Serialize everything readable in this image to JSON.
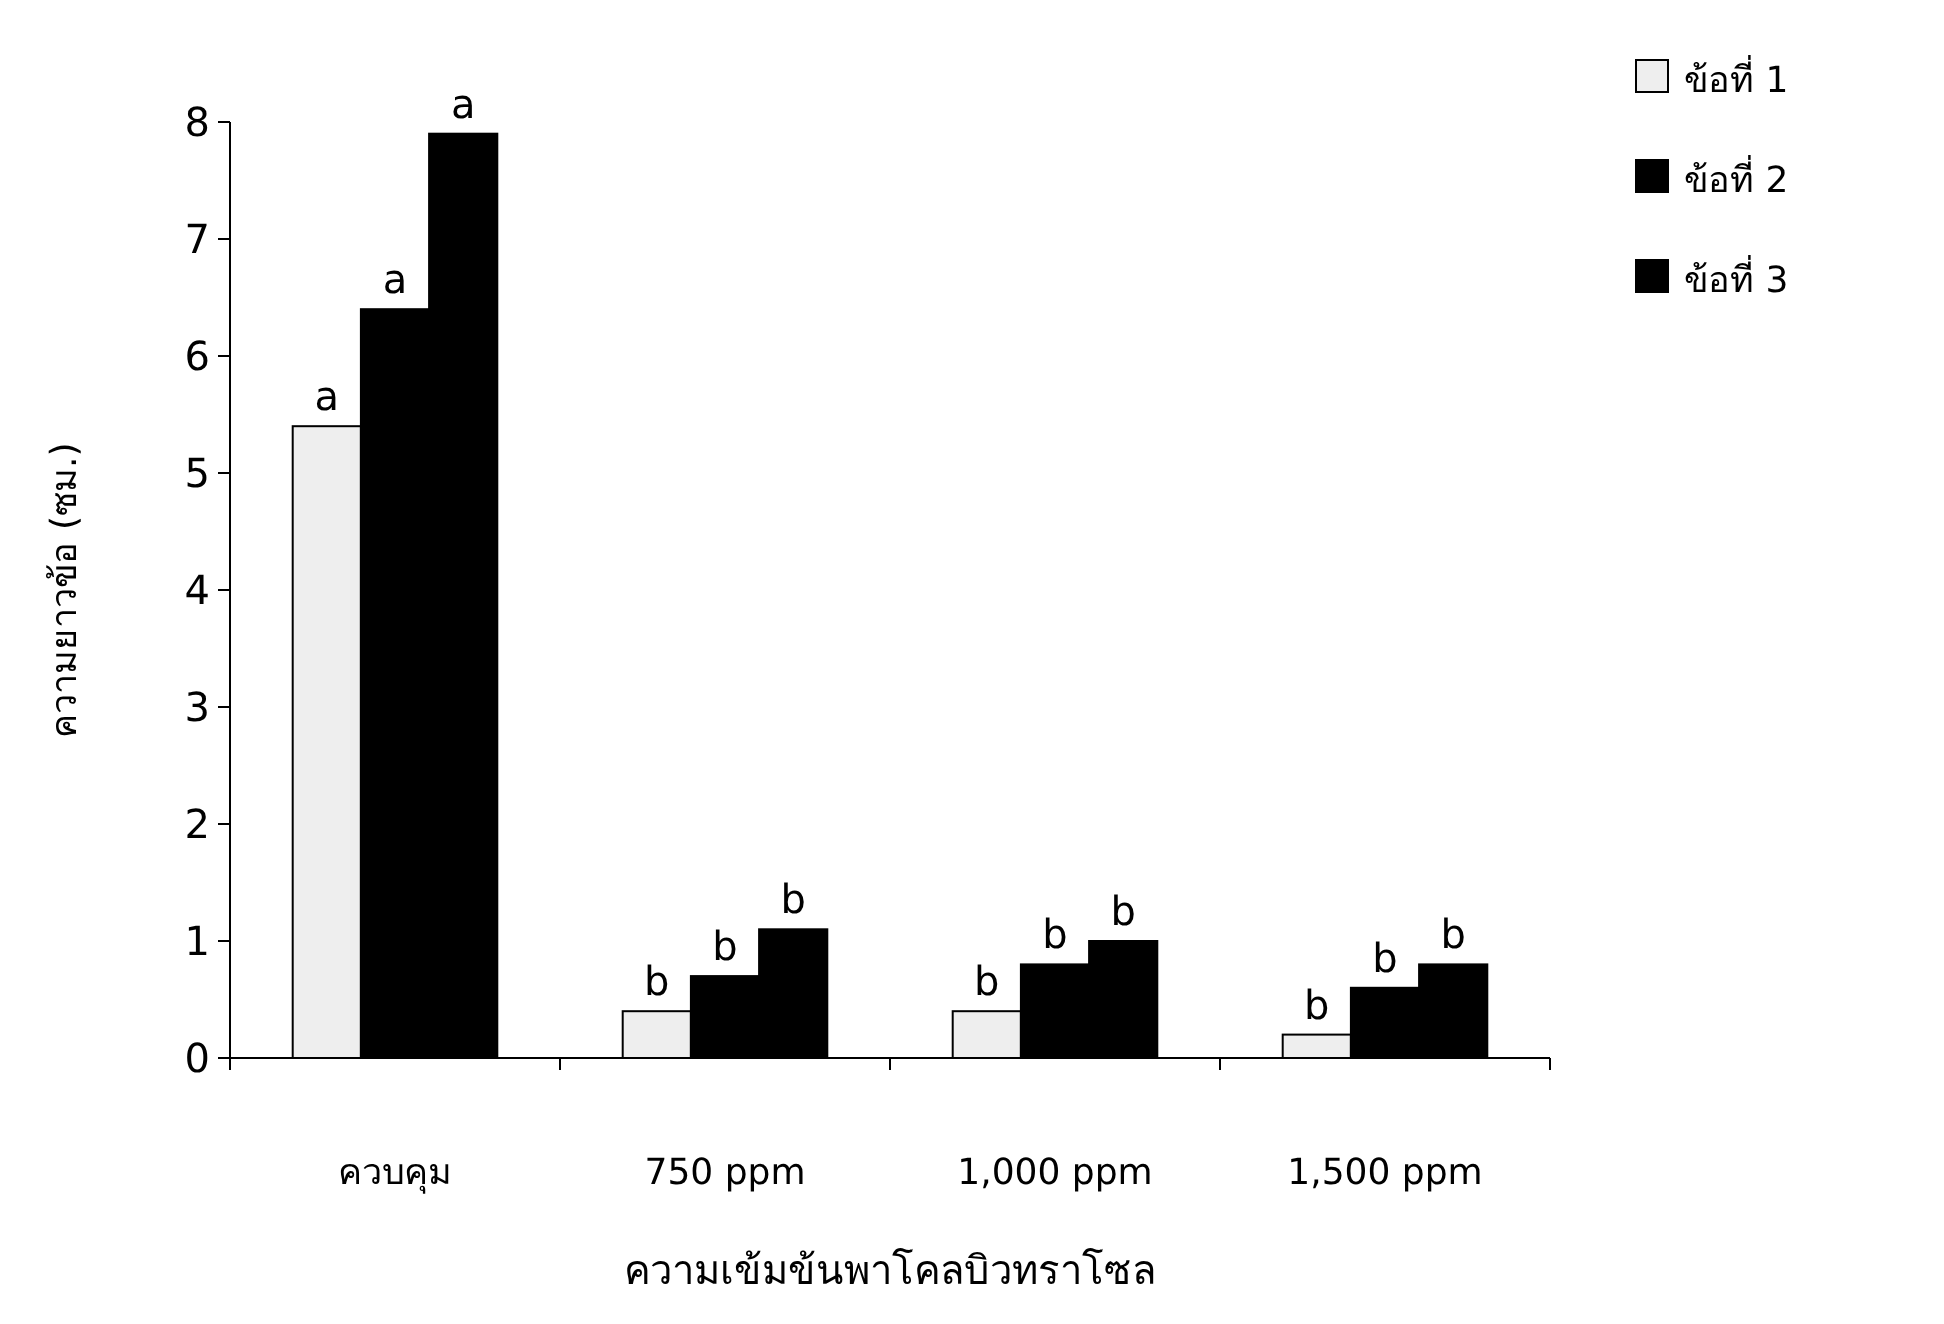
{
  "chart_data": {
    "type": "bar",
    "xlabel": "ความเข้มข้นพาโคลบิวทราโซล",
    "ylabel": "ความยาวข้อ (ซม.)",
    "categories": [
      "ควบคุม",
      "750 ppm",
      "1,000 ppm",
      "1,500 ppm"
    ],
    "series": [
      {
        "name": "ข้อที่ 1",
        "color": "#eeeeee",
        "values": [
          5.4,
          0.4,
          0.4,
          0.2
        ],
        "value_labels": [
          "a",
          "b",
          "b",
          "b"
        ]
      },
      {
        "name": "ข้อที่ 2",
        "color": "#000000",
        "values": [
          6.4,
          0.7,
          0.8,
          0.6
        ],
        "value_labels": [
          "a",
          "b",
          "b",
          "b"
        ]
      },
      {
        "name": "ข้อที่ 3",
        "color": "#000000",
        "values": [
          7.9,
          1.1,
          1.0,
          0.8
        ],
        "value_labels": [
          "a",
          "b",
          "b",
          "b"
        ]
      }
    ],
    "ylim": [
      0,
      8
    ],
    "yticks": [
      0,
      1,
      2,
      3,
      4,
      5,
      6,
      7,
      8
    ],
    "grid": false,
    "legend": "top right"
  }
}
